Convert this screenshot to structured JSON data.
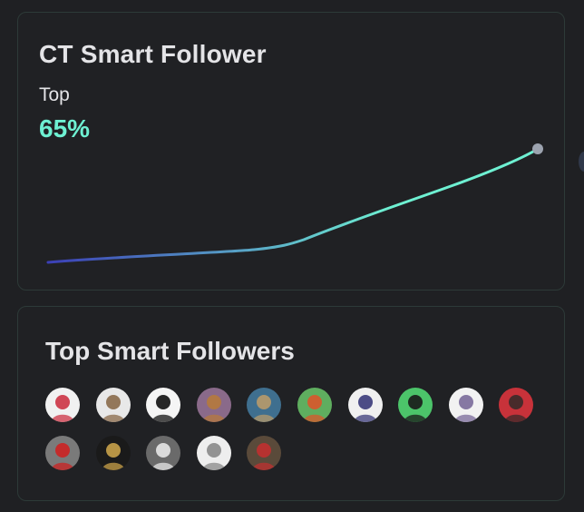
{
  "card_top": {
    "title": "CT Smart Follower",
    "rank_label": "Top",
    "rank_value": "65%",
    "line_colors": {
      "start": "#3b3fb6",
      "end": "#6ef0d2"
    },
    "endpoint_color": "#9ca3af",
    "accent_color": "#6ef0d2"
  },
  "card_bottom": {
    "title": "Top Smart Followers",
    "avatars": [
      {
        "name": "smart-follower-avatar-1",
        "bg": "#f1f1f1",
        "fg": "#cc3344"
      },
      {
        "name": "smart-follower-avatar-2",
        "bg": "#e8e8e8",
        "fg": "#8a6a4a"
      },
      {
        "name": "smart-follower-avatar-3",
        "bg": "#f5f5f5",
        "fg": "#111111"
      },
      {
        "name": "smart-follower-avatar-4",
        "bg": "#8a6a8a",
        "fg": "#b57a3c"
      },
      {
        "name": "smart-follower-avatar-5",
        "bg": "#3f6f8f",
        "fg": "#b89a6a"
      },
      {
        "name": "smart-follower-avatar-6",
        "bg": "#5fae5f",
        "fg": "#d9572b"
      },
      {
        "name": "smart-follower-avatar-7",
        "bg": "#f0f0f0",
        "fg": "#3a3a7a"
      },
      {
        "name": "smart-follower-avatar-8",
        "bg": "#4cc46a",
        "fg": "#1a1a1a"
      },
      {
        "name": "smart-follower-avatar-9",
        "bg": "#f2f2f2",
        "fg": "#7a6a9a"
      },
      {
        "name": "smart-follower-avatar-10",
        "bg": "#c8323a",
        "fg": "#3a2a2a"
      },
      {
        "name": "smart-follower-avatar-11",
        "bg": "#7a7a7a",
        "fg": "#cc2222"
      },
      {
        "name": "smart-follower-avatar-12",
        "bg": "#1a1a1a",
        "fg": "#c9a24a"
      },
      {
        "name": "smart-follower-avatar-13",
        "bg": "#6a6a6a",
        "fg": "#e8e8e8"
      },
      {
        "name": "smart-follower-avatar-14",
        "bg": "#eeeeee",
        "fg": "#888888"
      },
      {
        "name": "smart-follower-avatar-15",
        "bg": "#5a4a3a",
        "fg": "#c03030"
      }
    ]
  }
}
